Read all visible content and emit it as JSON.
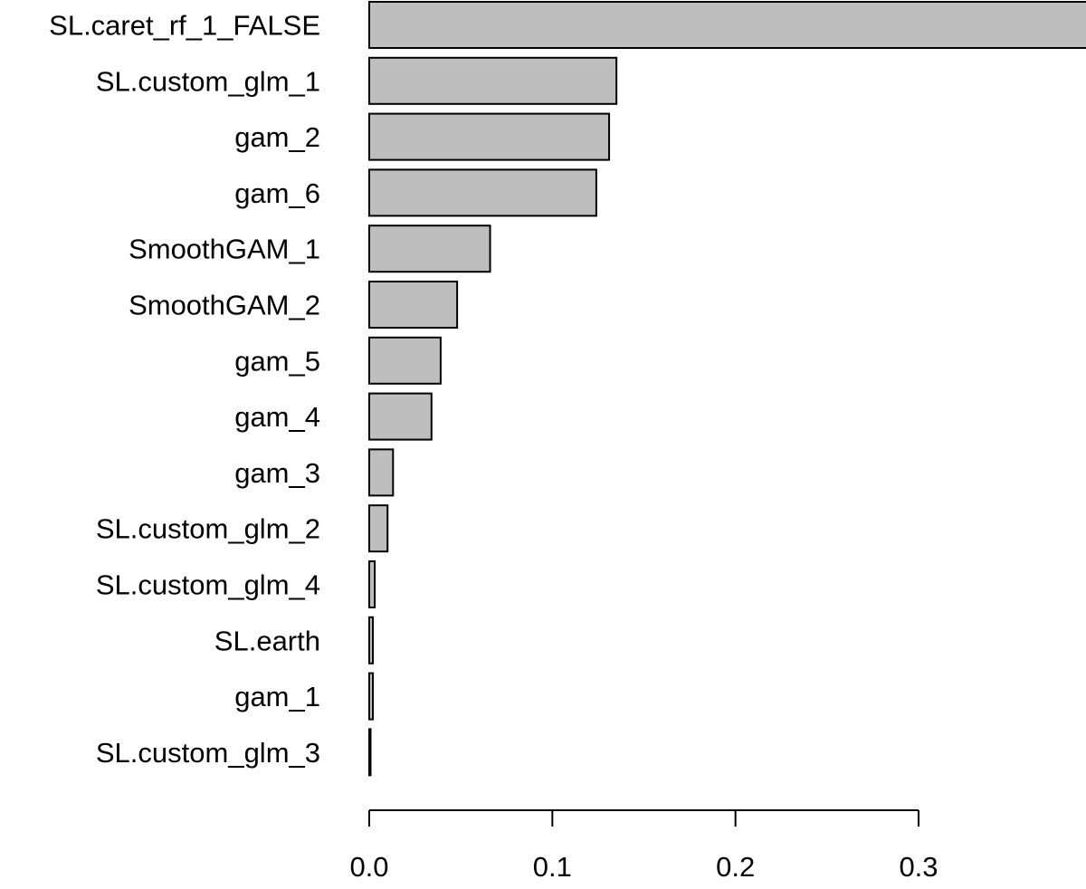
{
  "chart_data": {
    "type": "bar",
    "orientation": "horizontal",
    "title": "",
    "xlabel": "",
    "ylabel": "",
    "xlim": [
      0,
      0.39
    ],
    "x_ticks": [
      0.0,
      0.1,
      0.2,
      0.3
    ],
    "x_tick_labels": [
      "0.0",
      "0.1",
      "0.2",
      "0.3"
    ],
    "grid": false,
    "bar_color": "#bebebe",
    "border_color": "#000000",
    "categories": [
      "SL.caret_rf_1_FALSE",
      "SL.custom_glm_1",
      "gam_2",
      "gam_6",
      "SmoothGAM_1",
      "SmoothGAM_2",
      "gam_5",
      "gam_4",
      "gam_3",
      "SL.custom_glm_2",
      "SL.custom_glm_4",
      "SL.earth",
      "gam_1",
      "SL.custom_glm_3"
    ],
    "values": [
      0.392,
      0.135,
      0.131,
      0.124,
      0.066,
      0.048,
      0.039,
      0.034,
      0.013,
      0.01,
      0.003,
      0.002,
      0.002,
      0.0005
    ]
  }
}
